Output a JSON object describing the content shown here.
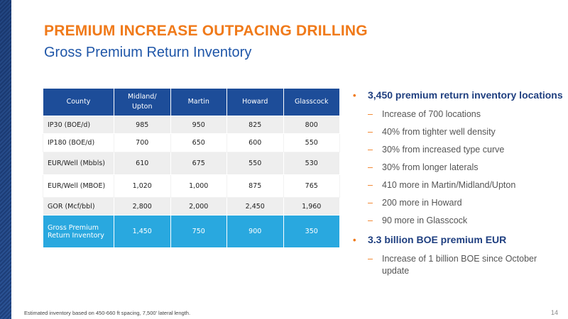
{
  "title": "PREMIUM INCREASE OUTPACING DRILLING",
  "subtitle": "Gross Premium Return Inventory",
  "table": {
    "headers": [
      "County",
      "Midland/\nUpton",
      "Martin",
      "Howard",
      "Glasscock"
    ],
    "rows": [
      {
        "label": "IP30 (BOE/d)",
        "values": [
          "985",
          "950",
          "825",
          "800"
        ]
      },
      {
        "label": "IP180 (BOE/d)",
        "values": [
          "700",
          "650",
          "600",
          "550"
        ]
      },
      {
        "label": "EUR/Well (Mbbls)",
        "values": [
          "610",
          "675",
          "550",
          "530"
        ]
      },
      {
        "label": "EUR/Well (MBOE)",
        "values": [
          "1,020",
          "1,000",
          "875",
          "765"
        ]
      },
      {
        "label": "GOR (Mcf/bbl)",
        "values": [
          "2,800",
          "2,000",
          "2,450",
          "1,960"
        ]
      }
    ],
    "highlight_row": {
      "label_line1": "Gross Premium",
      "label_line2": "Return Inventory",
      "values": [
        "1,450",
        "750",
        "900",
        "350"
      ]
    }
  },
  "bullets": [
    {
      "text": "3,450 premium return inventory locations",
      "subs": [
        "Increase of 700 locations",
        "40% from tighter well density",
        "30% from increased type curve",
        "30% from longer laterals",
        "410 more in Martin/Midland/Upton",
        "200 more in Howard",
        "90 more in Glasscock"
      ]
    },
    {
      "text": "3.3 billion BOE premium EUR",
      "subs": [
        "Increase of 1 billion BOE since October update"
      ]
    }
  ],
  "footnote": "Estimated inventory based on 450-660 ft spacing, 7,500’ lateral length.",
  "page_number": "14",
  "colors": {
    "accent_orange": "#f07a1a",
    "header_blue": "#1d4d99",
    "highlight_blue": "#29a8df",
    "title_blue": "#1f56a8"
  }
}
